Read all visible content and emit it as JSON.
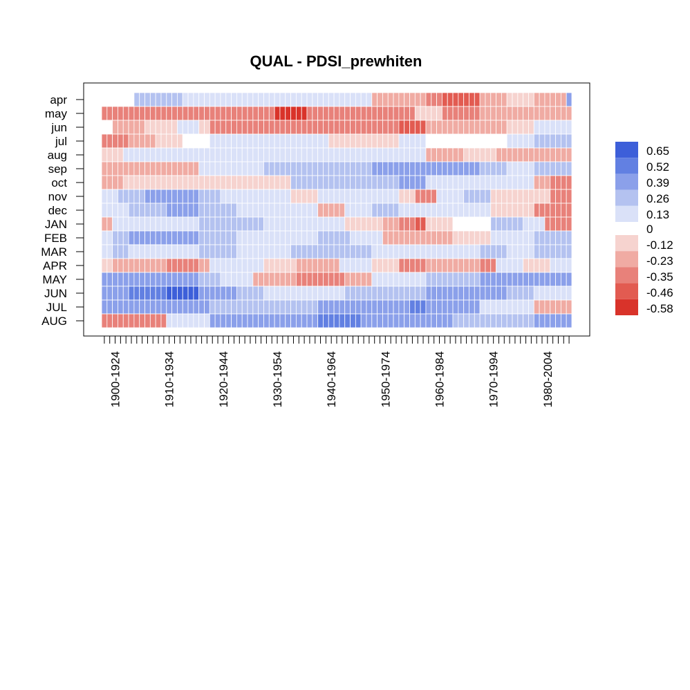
{
  "chart_data": {
    "type": "heatmap",
    "title": "QUAL - PDSI_prewhiten",
    "xlabel": "",
    "ylabel": "",
    "rows": [
      "apr",
      "may",
      "jun",
      "jul",
      "aug",
      "sep",
      "oct",
      "nov",
      "dec",
      "JAN",
      "FEB",
      "MAR",
      "APR",
      "MAY",
      "JUN",
      "JUL",
      "AUG"
    ],
    "x_tick_labels": [
      "1900-1924",
      "1910-1934",
      "1920-1944",
      "1930-1954",
      "1940-1964",
      "1950-1974",
      "1960-1984",
      "1970-1994",
      "1980-2004"
    ],
    "n_windows": 87,
    "legend": {
      "position": "right",
      "labels": [
        "0.65",
        "0.52",
        "0.39",
        "0.26",
        "0.13",
        "0",
        "-0.12",
        "-0.23",
        "-0.35",
        "-0.46",
        "-0.58"
      ],
      "colors": [
        "#3d5fd9",
        "#6280e2",
        "#8ba0ea",
        "#b4c2f0",
        "#dae1f8",
        "#ffffff",
        "#f6d3cf",
        "#f0aba3",
        "#e8817a",
        "#e25b51",
        "#d9332a"
      ]
    },
    "segments": [
      [
        [
          0,
          6,
          0.0
        ],
        [
          6,
          15,
          0.13
        ],
        [
          15,
          25,
          0.05
        ],
        [
          25,
          40,
          0.03
        ],
        [
          40,
          50,
          0.08
        ],
        [
          50,
          60,
          -0.15
        ],
        [
          60,
          63,
          -0.25
        ],
        [
          63,
          70,
          -0.42
        ],
        [
          70,
          75,
          -0.22
        ],
        [
          75,
          80,
          -0.1
        ],
        [
          80,
          86,
          -0.12
        ],
        [
          86,
          87,
          0.26
        ]
      ],
      [
        [
          0,
          12,
          -0.34
        ],
        [
          12,
          20,
          -0.3
        ],
        [
          20,
          25,
          -0.33
        ],
        [
          25,
          30,
          -0.26
        ],
        [
          30,
          32,
          -0.34
        ],
        [
          32,
          38,
          -0.5
        ],
        [
          38,
          45,
          -0.34
        ],
        [
          45,
          55,
          -0.3
        ],
        [
          55,
          58,
          -0.24
        ],
        [
          58,
          63,
          -0.1
        ],
        [
          63,
          70,
          -0.3
        ],
        [
          70,
          80,
          -0.22
        ],
        [
          80,
          87,
          -0.2
        ]
      ],
      [
        [
          0,
          2,
          0.0
        ],
        [
          2,
          8,
          -0.12
        ],
        [
          8,
          14,
          -0.05
        ],
        [
          14,
          18,
          0.1
        ],
        [
          18,
          20,
          -0.1
        ],
        [
          20,
          32,
          -0.3
        ],
        [
          32,
          40,
          -0.34
        ],
        [
          40,
          55,
          -0.28
        ],
        [
          55,
          60,
          -0.4
        ],
        [
          60,
          68,
          -0.2
        ],
        [
          68,
          75,
          -0.12
        ],
        [
          75,
          80,
          -0.1
        ],
        [
          80,
          87,
          0.08
        ]
      ],
      [
        [
          0,
          5,
          -0.24
        ],
        [
          5,
          10,
          -0.12
        ],
        [
          10,
          15,
          -0.06
        ],
        [
          15,
          20,
          0.0
        ],
        [
          20,
          30,
          0.05
        ],
        [
          30,
          42,
          0.02
        ],
        [
          42,
          45,
          -0.1
        ],
        [
          45,
          55,
          -0.05
        ],
        [
          55,
          60,
          0.05
        ],
        [
          60,
          75,
          0.0
        ],
        [
          75,
          80,
          0.1
        ],
        [
          80,
          87,
          0.2
        ]
      ],
      [
        [
          0,
          4,
          -0.1
        ],
        [
          4,
          10,
          0.02
        ],
        [
          10,
          20,
          0.05
        ],
        [
          20,
          30,
          0.06
        ],
        [
          30,
          40,
          0.02
        ],
        [
          40,
          55,
          0.04
        ],
        [
          55,
          60,
          0.08
        ],
        [
          60,
          67,
          -0.18
        ],
        [
          67,
          73,
          -0.1
        ],
        [
          73,
          80,
          -0.18
        ],
        [
          80,
          87,
          -0.12
        ]
      ],
      [
        [
          0,
          5,
          -0.12
        ],
        [
          5,
          12,
          -0.12
        ],
        [
          12,
          18,
          -0.14
        ],
        [
          18,
          25,
          0.02
        ],
        [
          25,
          30,
          0.06
        ],
        [
          30,
          35,
          0.16
        ],
        [
          35,
          45,
          0.22
        ],
        [
          45,
          50,
          0.25
        ],
        [
          50,
          60,
          0.35
        ],
        [
          60,
          70,
          0.3
        ],
        [
          70,
          75,
          0.15
        ],
        [
          75,
          80,
          0.12
        ],
        [
          80,
          87,
          0.16
        ]
      ],
      [
        [
          0,
          4,
          -0.16
        ],
        [
          4,
          20,
          -0.08
        ],
        [
          20,
          28,
          -0.06
        ],
        [
          28,
          35,
          -0.1
        ],
        [
          35,
          45,
          0.14
        ],
        [
          45,
          55,
          0.22
        ],
        [
          55,
          60,
          0.3
        ],
        [
          60,
          70,
          0.12
        ],
        [
          70,
          80,
          0.02
        ],
        [
          80,
          83,
          -0.12
        ],
        [
          83,
          87,
          -0.3
        ]
      ],
      [
        [
          0,
          3,
          0.12
        ],
        [
          3,
          8,
          0.22
        ],
        [
          8,
          18,
          0.26
        ],
        [
          18,
          22,
          0.14
        ],
        [
          22,
          28,
          0.12
        ],
        [
          28,
          35,
          0.06
        ],
        [
          35,
          40,
          -0.06
        ],
        [
          40,
          50,
          0.1
        ],
        [
          50,
          55,
          0.08
        ],
        [
          55,
          58,
          -0.08
        ],
        [
          58,
          62,
          -0.28
        ],
        [
          62,
          67,
          0.1
        ],
        [
          67,
          72,
          0.16
        ],
        [
          72,
          80,
          -0.06
        ],
        [
          80,
          83,
          -0.1
        ],
        [
          83,
          87,
          -0.26
        ]
      ],
      [
        [
          0,
          5,
          0.12
        ],
        [
          5,
          12,
          0.22
        ],
        [
          12,
          18,
          0.26
        ],
        [
          18,
          25,
          0.14
        ],
        [
          25,
          30,
          0.12
        ],
        [
          30,
          40,
          0.04
        ],
        [
          40,
          45,
          -0.12
        ],
        [
          45,
          50,
          0.06
        ],
        [
          50,
          55,
          0.22
        ],
        [
          55,
          60,
          0.12
        ],
        [
          60,
          65,
          0.06
        ],
        [
          65,
          72,
          0.1
        ],
        [
          72,
          80,
          -0.1
        ],
        [
          80,
          87,
          -0.24
        ]
      ],
      [
        [
          0,
          2,
          -0.16
        ],
        [
          2,
          5,
          0.12
        ],
        [
          5,
          18,
          0.02
        ],
        [
          18,
          24,
          0.14
        ],
        [
          24,
          30,
          0.2
        ],
        [
          30,
          40,
          0.06
        ],
        [
          40,
          45,
          0.1
        ],
        [
          45,
          52,
          -0.06
        ],
        [
          52,
          55,
          -0.14
        ],
        [
          55,
          58,
          -0.28
        ],
        [
          58,
          60,
          -0.36
        ],
        [
          60,
          65,
          -0.1
        ],
        [
          65,
          72,
          0.0
        ],
        [
          72,
          78,
          0.14
        ],
        [
          78,
          82,
          0.06
        ],
        [
          82,
          87,
          -0.3
        ]
      ],
      [
        [
          0,
          2,
          0.1
        ],
        [
          2,
          5,
          0.18
        ],
        [
          5,
          18,
          0.34
        ],
        [
          18,
          25,
          0.18
        ],
        [
          25,
          30,
          0.12
        ],
        [
          30,
          40,
          0.1
        ],
        [
          40,
          46,
          0.18
        ],
        [
          46,
          52,
          0.05
        ],
        [
          52,
          57,
          -0.12
        ],
        [
          57,
          65,
          -0.16
        ],
        [
          65,
          72,
          -0.1
        ],
        [
          72,
          80,
          0.12
        ],
        [
          80,
          87,
          0.24
        ]
      ],
      [
        [
          0,
          2,
          0.08
        ],
        [
          2,
          5,
          0.14
        ],
        [
          5,
          12,
          0.02
        ],
        [
          12,
          18,
          0.06
        ],
        [
          18,
          25,
          0.14
        ],
        [
          25,
          35,
          0.08
        ],
        [
          35,
          45,
          0.14
        ],
        [
          45,
          50,
          0.2
        ],
        [
          50,
          55,
          0.1
        ],
        [
          55,
          60,
          0.06
        ],
        [
          60,
          63,
          0.02
        ],
        [
          63,
          70,
          0.12
        ],
        [
          70,
          75,
          0.22
        ],
        [
          75,
          80,
          0.12
        ],
        [
          80,
          87,
          0.18
        ]
      ],
      [
        [
          0,
          2,
          -0.06
        ],
        [
          2,
          4,
          -0.12
        ],
        [
          4,
          12,
          -0.22
        ],
        [
          12,
          18,
          -0.28
        ],
        [
          18,
          20,
          -0.14
        ],
        [
          20,
          25,
          0.06
        ],
        [
          25,
          30,
          0.08
        ],
        [
          30,
          36,
          -0.08
        ],
        [
          36,
          44,
          -0.12
        ],
        [
          44,
          50,
          0.02
        ],
        [
          50,
          55,
          -0.08
        ],
        [
          55,
          60,
          -0.32
        ],
        [
          60,
          64,
          -0.22
        ],
        [
          64,
          70,
          -0.2
        ],
        [
          70,
          73,
          -0.34
        ],
        [
          73,
          78,
          0.06
        ],
        [
          78,
          83,
          -0.06
        ],
        [
          83,
          87,
          0.1
        ]
      ],
      [
        [
          0,
          5,
          0.38
        ],
        [
          5,
          12,
          0.34
        ],
        [
          12,
          18,
          0.3
        ],
        [
          18,
          22,
          0.2
        ],
        [
          22,
          25,
          0.08
        ],
        [
          25,
          28,
          0.02
        ],
        [
          28,
          30,
          -0.12
        ],
        [
          30,
          36,
          -0.2
        ],
        [
          36,
          45,
          -0.28
        ],
        [
          45,
          50,
          -0.18
        ],
        [
          50,
          55,
          0.06
        ],
        [
          55,
          60,
          0.12
        ],
        [
          60,
          70,
          0.22
        ],
        [
          70,
          80,
          0.34
        ],
        [
          80,
          87,
          0.34
        ]
      ],
      [
        [
          0,
          5,
          0.28
        ],
        [
          5,
          12,
          0.4
        ],
        [
          12,
          18,
          0.52
        ],
        [
          18,
          25,
          0.26
        ],
        [
          25,
          30,
          0.14
        ],
        [
          30,
          35,
          0.04
        ],
        [
          35,
          45,
          0.12
        ],
        [
          45,
          55,
          0.14
        ],
        [
          55,
          60,
          0.2
        ],
        [
          60,
          70,
          0.3
        ],
        [
          70,
          75,
          0.34
        ],
        [
          75,
          80,
          0.2
        ],
        [
          80,
          87,
          0.12
        ]
      ],
      [
        [
          0,
          5,
          0.3
        ],
        [
          5,
          12,
          0.3
        ],
        [
          12,
          20,
          0.26
        ],
        [
          20,
          25,
          0.24
        ],
        [
          25,
          30,
          0.22
        ],
        [
          30,
          40,
          0.22
        ],
        [
          40,
          45,
          0.26
        ],
        [
          45,
          50,
          0.3
        ],
        [
          50,
          57,
          0.3
        ],
        [
          57,
          60,
          0.44
        ],
        [
          60,
          70,
          0.3
        ],
        [
          70,
          75,
          0.1
        ],
        [
          75,
          80,
          0.02
        ],
        [
          80,
          87,
          -0.12
        ]
      ],
      [
        [
          0,
          7,
          -0.32
        ],
        [
          7,
          12,
          -0.26
        ],
        [
          12,
          15,
          0.06
        ],
        [
          15,
          20,
          0.12
        ],
        [
          20,
          30,
          0.3
        ],
        [
          30,
          40,
          0.38
        ],
        [
          40,
          48,
          0.42
        ],
        [
          48,
          57,
          0.38
        ],
        [
          57,
          65,
          0.26
        ],
        [
          65,
          70,
          0.2
        ],
        [
          70,
          75,
          0.14
        ],
        [
          75,
          80,
          0.18
        ],
        [
          80,
          87,
          0.26
        ]
      ]
    ]
  }
}
